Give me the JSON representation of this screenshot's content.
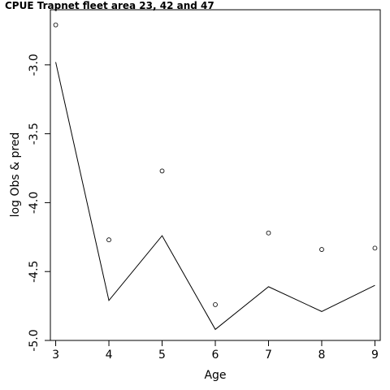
{
  "chart_data": {
    "type": "line",
    "title": "CPUE Trapnet fleet area 23, 42 and 47",
    "xlabel": "Age",
    "ylabel": "log Obs & pred",
    "x": [
      3,
      4,
      5,
      6,
      7,
      8,
      9
    ],
    "xlim": [
      2.9,
      9.1
    ],
    "ylim": [
      -5.0,
      -2.6
    ],
    "xticks": [
      3,
      4,
      5,
      6,
      7,
      8,
      9
    ],
    "yticks": [
      -5.0,
      -4.5,
      -4.0,
      -3.5,
      -3.0
    ],
    "ytick_labels": [
      "-5.0",
      "-4.5",
      "-4.0",
      "-3.5",
      "-3.0"
    ],
    "grid": false,
    "series": [
      {
        "style": "points",
        "marker": "open-circle",
        "values": [
          -2.71,
          -4.27,
          -3.77,
          -4.74,
          -4.22,
          -4.34,
          -4.33
        ]
      },
      {
        "style": "line",
        "values": [
          -2.98,
          -4.71,
          -4.24,
          -4.92,
          -4.61,
          -4.79,
          -4.6
        ]
      }
    ]
  }
}
